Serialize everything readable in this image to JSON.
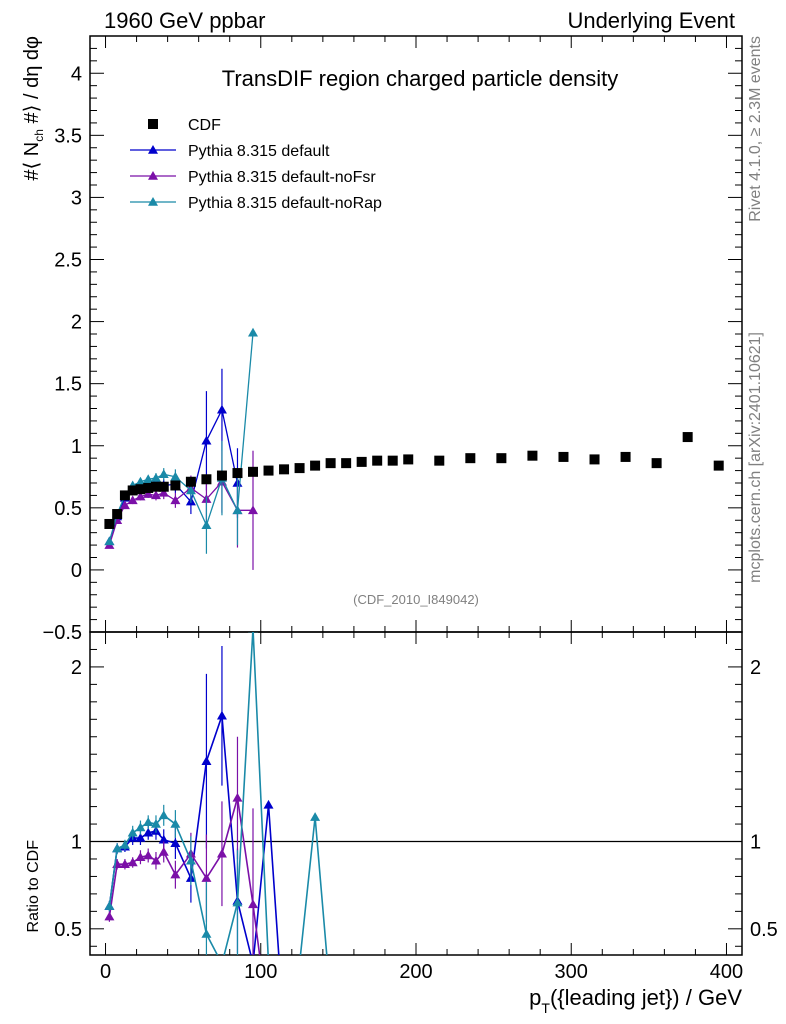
{
  "header": {
    "left": "1960 GeV ppbar",
    "right": "Underlying Event"
  },
  "side_labels": {
    "rivet": "Rivet 4.1.0, ≥ 2.3M events",
    "mcplots": "mcplots.cern.ch [arXiv:2401.10621]"
  },
  "chart_data": {
    "type": "scatter",
    "title": "TransDIF region charged particle density",
    "watermark": "(CDF_2010_I849042)",
    "xlabel": "p_T({leading jet}) / GeV",
    "ylabel": "#⟨ N_ch #⟩ / dη dφ",
    "ratio_ylabel": "Ratio to CDF",
    "xlim": [
      -10,
      410
    ],
    "ylim": [
      -0.5,
      4.3
    ],
    "ratio_ylim": [
      0.35,
      2.2
    ],
    "x_ticks": [
      0,
      100,
      200,
      300,
      400
    ],
    "y_ticks": [
      -0.5,
      0,
      0.5,
      1,
      1.5,
      2,
      2.5,
      3,
      3.5,
      4
    ],
    "ratio_ticks": [
      0.5,
      1,
      2
    ],
    "legend": [
      {
        "name": "CDF",
        "color": "#000000",
        "marker": "square"
      },
      {
        "name": "Pythia 8.315 default",
        "color": "#0000cc",
        "marker": "triangle"
      },
      {
        "name": "Pythia 8.315 default-noFsr",
        "color": "#7b10a8",
        "marker": "triangle"
      },
      {
        "name": "Pythia 8.315 default-noRap",
        "color": "#1a8aa8",
        "marker": "triangle"
      }
    ],
    "data": {
      "name": "CDF",
      "x": [
        2.5,
        7.5,
        12.5,
        17.5,
        22.5,
        27.5,
        32.5,
        37.5,
        45,
        55,
        65,
        75,
        85,
        95,
        105,
        115,
        125,
        135,
        145,
        155,
        165,
        175,
        185,
        195,
        215,
        235,
        255,
        275,
        295,
        315,
        335,
        355,
        375,
        395
      ],
      "y": [
        0.37,
        0.45,
        0.6,
        0.64,
        0.65,
        0.66,
        0.67,
        0.67,
        0.68,
        0.71,
        0.73,
        0.76,
        0.78,
        0.79,
        0.8,
        0.81,
        0.82,
        0.84,
        0.86,
        0.86,
        0.87,
        0.88,
        0.88,
        0.89,
        0.88,
        0.9,
        0.9,
        0.92,
        0.91,
        0.89,
        0.91,
        0.86,
        1.07,
        0.84
      ]
    },
    "series": [
      {
        "name": "Pythia 8.315 default",
        "color": "#0000cc",
        "x": [
          2.5,
          7.5,
          12.5,
          17.5,
          22.5,
          27.5,
          32.5,
          37.5,
          45,
          55,
          65,
          75,
          85
        ],
        "y": [
          0.23,
          0.43,
          0.58,
          0.66,
          0.67,
          0.69,
          0.71,
          0.68,
          0.69,
          0.55,
          1.04,
          1.29,
          0.7
        ],
        "err": [
          0.02,
          0.02,
          0.03,
          0.03,
          0.03,
          0.03,
          0.04,
          0.05,
          0.07,
          0.1,
          0.4,
          0.33,
          0.28
        ],
        "ratio_x": [
          2.5,
          7.5,
          12.5,
          17.5,
          22.5,
          27.5,
          32.5,
          37.5,
          45,
          55,
          65,
          75,
          85,
          95,
          105,
          112
        ],
        "ratio_y": [
          0.63,
          0.96,
          0.97,
          1.02,
          1.02,
          1.05,
          1.06,
          1.01,
          0.99,
          0.79,
          1.46,
          1.72,
          0.66,
          0.3,
          1.21,
          0.3
        ],
        "ratio_err": [
          0.03,
          0.03,
          0.03,
          0.04,
          0.04,
          0.04,
          0.05,
          0.06,
          0.09,
          0.14,
          0.5,
          0.4,
          0.3,
          0.0,
          0.0,
          0.0
        ]
      },
      {
        "name": "Pythia 8.315 default-noFsr",
        "color": "#7b10a8",
        "x": [
          2.5,
          7.5,
          12.5,
          17.5,
          22.5,
          27.5,
          32.5,
          37.5,
          45,
          55,
          65,
          75,
          85,
          95
        ],
        "y": [
          0.2,
          0.4,
          0.52,
          0.56,
          0.59,
          0.61,
          0.6,
          0.62,
          0.56,
          0.66,
          0.57,
          0.71,
          0.48,
          0.48
        ],
        "err": [
          0.02,
          0.02,
          0.03,
          0.03,
          0.03,
          0.03,
          0.04,
          0.05,
          0.06,
          0.1,
          0.2,
          0.25,
          0.3,
          0.48
        ],
        "ratio_x": [
          2.5,
          7.5,
          12.5,
          17.5,
          22.5,
          27.5,
          32.5,
          37.5,
          45,
          55,
          65,
          75,
          85,
          95,
          100
        ],
        "ratio_y": [
          0.57,
          0.87,
          0.87,
          0.88,
          0.91,
          0.92,
          0.89,
          0.94,
          0.81,
          0.93,
          0.79,
          0.93,
          1.25,
          0.64,
          0.3
        ],
        "ratio_err": [
          0.03,
          0.03,
          0.03,
          0.03,
          0.04,
          0.04,
          0.05,
          0.06,
          0.08,
          0.12,
          0.25,
          0.3,
          0.35,
          0.55,
          0.0
        ]
      },
      {
        "name": "Pythia 8.315 default-noRap",
        "color": "#1a8aa8",
        "x": [
          2.5,
          7.5,
          12.5,
          17.5,
          22.5,
          27.5,
          32.5,
          37.5,
          45,
          55,
          65,
          75,
          85,
          95
        ],
        "y": [
          0.23,
          0.45,
          0.6,
          0.68,
          0.71,
          0.73,
          0.74,
          0.77,
          0.75,
          0.64,
          0.36,
          0.74,
          0.48,
          1.91
        ],
        "err": [
          0.02,
          0.02,
          0.03,
          0.03,
          0.03,
          0.03,
          0.04,
          0.05,
          0.06,
          0.1,
          0.23,
          0.3,
          0.28,
          0.0
        ],
        "ratio_x": [
          2.5,
          7.5,
          12.5,
          17.5,
          22.5,
          27.5,
          32.5,
          37.5,
          45,
          55,
          65,
          75,
          85,
          95,
          105,
          115,
          125,
          135,
          143
        ],
        "ratio_y": [
          0.63,
          0.96,
          0.98,
          1.05,
          1.08,
          1.11,
          1.1,
          1.15,
          1.1,
          0.89,
          0.47,
          0.3,
          0.65,
          2.22,
          0.3,
          0.3,
          0.3,
          1.14,
          0.3
        ],
        "ratio_err": [
          0.03,
          0.03,
          0.03,
          0.04,
          0.04,
          0.04,
          0.05,
          0.06,
          0.08,
          0.14,
          0.3,
          0.0,
          0.3,
          0.0,
          0.0,
          0.0,
          0.0,
          0.0,
          0.0
        ]
      }
    ]
  }
}
